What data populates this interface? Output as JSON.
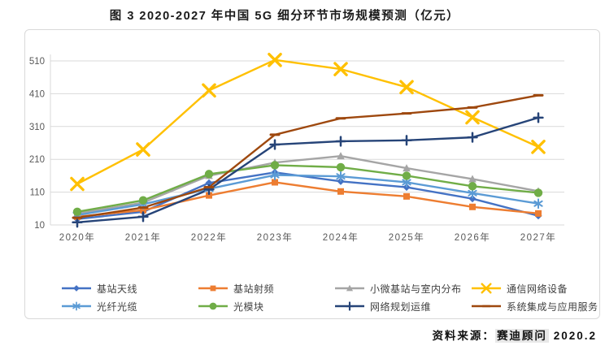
{
  "title": "图 3 2020-2027 年中国 5G 细分环节市场规模预测（亿元）",
  "source": {
    "prefix": "资料来源：",
    "org": "赛迪顾问",
    "date": "2020.2"
  },
  "chart_data": {
    "type": "line",
    "title": "图 3 2020-2027 年中国 5G 细分环节市场规模预测（亿元）",
    "unit": "亿元",
    "categories": [
      "2020年",
      "2021年",
      "2022年",
      "2023年",
      "2024年",
      "2025年",
      "2026年",
      "2027年"
    ],
    "yticks": [
      "10",
      "110",
      "210",
      "310",
      "410",
      "510"
    ],
    "ylim": [
      10,
      510
    ],
    "grid": true,
    "legend_position": "bottom",
    "series": [
      {
        "name": "基站天线",
        "color": "#4472C4",
        "marker": "diamond",
        "values": [
          28,
          50,
          138,
          170,
          143,
          125,
          90,
          38
        ]
      },
      {
        "name": "基站射频",
        "color": "#ED7D31",
        "marker": "square",
        "values": [
          35,
          55,
          100,
          140,
          112,
          97,
          65,
          45
        ]
      },
      {
        "name": "小微基站与室内分布",
        "color": "#A5A5A5",
        "marker": "triangle",
        "values": [
          45,
          78,
          160,
          200,
          220,
          183,
          150,
          113
        ]
      },
      {
        "name": "通信网络设备",
        "color": "#FFC000",
        "marker": "x",
        "values": [
          135,
          240,
          420,
          513,
          485,
          430,
          338,
          248
        ]
      },
      {
        "name": "光纤光缆",
        "color": "#5B9BD5",
        "marker": "asterisk",
        "values": [
          40,
          73,
          120,
          162,
          158,
          140,
          107,
          75
        ]
      },
      {
        "name": "光模块",
        "color": "#70AD47",
        "marker": "circle",
        "values": [
          50,
          85,
          165,
          192,
          186,
          160,
          128,
          108
        ]
      },
      {
        "name": "网络规划运维",
        "color": "#264478",
        "marker": "plus",
        "values": [
          18,
          35,
          118,
          255,
          265,
          268,
          277,
          337
        ]
      },
      {
        "name": "系统集成与应用服务",
        "color": "#9E480E",
        "marker": "dash",
        "values": [
          32,
          63,
          125,
          285,
          335,
          350,
          368,
          405
        ]
      }
    ]
  }
}
